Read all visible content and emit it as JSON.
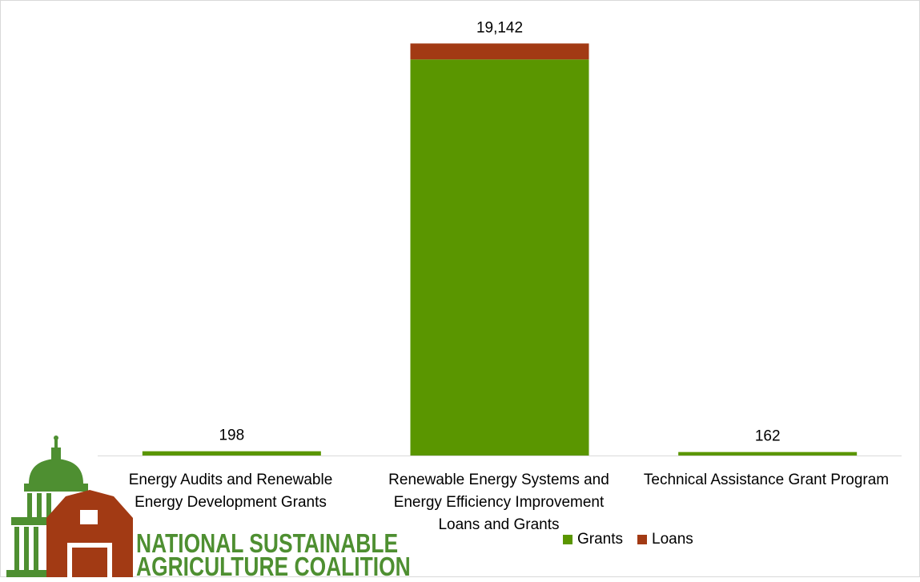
{
  "chart_data": {
    "type": "bar",
    "stacked": true,
    "categories": [
      "Energy Audits and Renewable Energy Development Grants",
      "Renewable Energy Systems and Energy Efficiency Improvement Loans and Grants",
      "Technical Assistance Grant Program"
    ],
    "series": [
      {
        "name": "Grants",
        "values": [
          198,
          18400,
          162
        ],
        "color": "#5a9600"
      },
      {
        "name": "Loans",
        "values": [
          0,
          742,
          0
        ],
        "color": "#a23a14"
      }
    ],
    "total_labels": [
      "198",
      "19,142",
      "162"
    ],
    "ylim": [
      0,
      19600
    ],
    "legend_position": "bottom-right",
    "grid": false
  },
  "logo": {
    "line1": "NATIONAL SUSTAINABLE",
    "line2": "AGRICULTURE COALITION",
    "colors": {
      "green": "#4e8f31",
      "barn": "#a23a14",
      "white": "#ffffff"
    }
  }
}
